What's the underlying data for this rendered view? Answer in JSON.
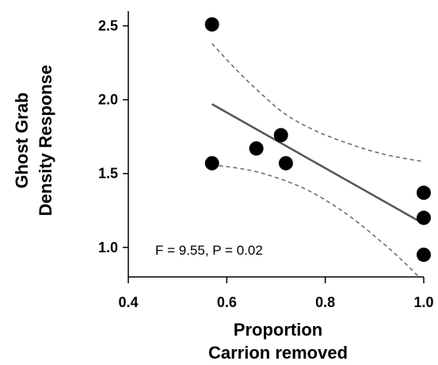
{
  "chart_data": {
    "type": "scatter",
    "title": "",
    "xlabel_lines": [
      "Proportion",
      "Carrion removed"
    ],
    "ylabel_lines": [
      "Ghost Grab",
      "Density Response"
    ],
    "xlim": [
      0.4,
      1.0
    ],
    "ylim": [
      0.8,
      2.6
    ],
    "xticks": [
      0.4,
      0.6,
      0.8,
      1.0
    ],
    "xtick_labels": [
      "0.4",
      "0.6",
      "0.8",
      "1.0"
    ],
    "yticks": [
      1.0,
      1.5,
      2.0,
      2.5
    ],
    "ytick_labels": [
      "1.0",
      "1.5",
      "2.0",
      "2.5"
    ],
    "grid": false,
    "legend": "none",
    "points": [
      {
        "x": 0.57,
        "y": 2.51
      },
      {
        "x": 0.57,
        "y": 1.57
      },
      {
        "x": 0.66,
        "y": 1.67
      },
      {
        "x": 0.71,
        "y": 1.76
      },
      {
        "x": 0.72,
        "y": 1.57
      },
      {
        "x": 1.0,
        "y": 1.37
      },
      {
        "x": 1.0,
        "y": 1.2
      },
      {
        "x": 1.0,
        "y": 0.95
      }
    ],
    "regression_line": [
      {
        "x": 0.57,
        "y": 1.97
      },
      {
        "x": 1.0,
        "y": 1.16
      }
    ],
    "confidence_upper": [
      {
        "x": 0.57,
        "y": 2.38
      },
      {
        "x": 0.62,
        "y": 2.2
      },
      {
        "x": 0.67,
        "y": 2.04
      },
      {
        "x": 0.72,
        "y": 1.9
      },
      {
        "x": 0.78,
        "y": 1.79
      },
      {
        "x": 0.85,
        "y": 1.7
      },
      {
        "x": 0.92,
        "y": 1.63
      },
      {
        "x": 1.0,
        "y": 1.58
      }
    ],
    "confidence_lower": [
      {
        "x": 0.57,
        "y": 1.56
      },
      {
        "x": 0.65,
        "y": 1.52
      },
      {
        "x": 0.72,
        "y": 1.45
      },
      {
        "x": 0.78,
        "y": 1.36
      },
      {
        "x": 0.85,
        "y": 1.21
      },
      {
        "x": 0.92,
        "y": 1.02
      },
      {
        "x": 0.96,
        "y": 0.9
      },
      {
        "x": 0.99,
        "y": 0.8
      }
    ],
    "annotation": "F = 9.55, P = 0.02",
    "colors": {
      "points": "#000000",
      "regression": "#555555",
      "confidence": "#666666",
      "axes": "#000000"
    }
  }
}
